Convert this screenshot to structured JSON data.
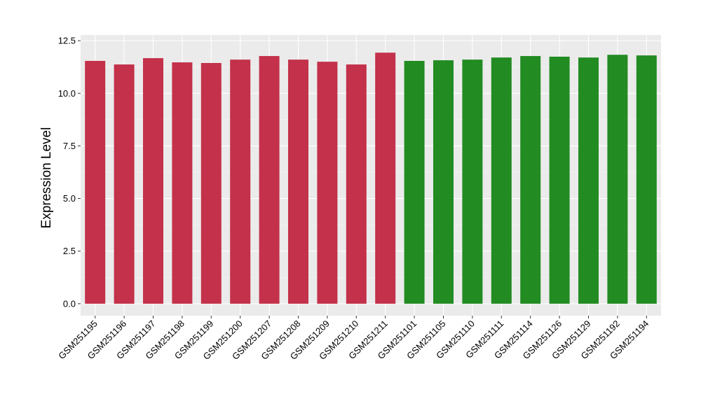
{
  "chart_data": {
    "type": "bar",
    "title": "",
    "xlabel": "",
    "ylabel": "Expression Level",
    "ylim": [
      -0.57,
      12.77
    ],
    "yticks": [
      "0.0",
      "2.5",
      "5.0",
      "7.5",
      "10.0",
      "12.5"
    ],
    "ytick_values": [
      0,
      2.5,
      5,
      7.5,
      10,
      12.5
    ],
    "grid": true,
    "categories": [
      "GSM251195",
      "GSM251196",
      "GSM251197",
      "GSM251198",
      "GSM251199",
      "GSM251200",
      "GSM251207",
      "GSM251208",
      "GSM251209",
      "GSM251210",
      "GSM251211",
      "GSM251101",
      "GSM251105",
      "GSM251110",
      "GSM251111",
      "GSM251114",
      "GSM251126",
      "GSM251129",
      "GSM251192",
      "GSM251194"
    ],
    "values": [
      11.54,
      11.37,
      11.67,
      11.47,
      11.44,
      11.6,
      11.77,
      11.6,
      11.5,
      11.37,
      11.93,
      11.54,
      11.57,
      11.6,
      11.7,
      11.77,
      11.74,
      11.7,
      11.83,
      11.8
    ],
    "groups": [
      0,
      0,
      0,
      0,
      0,
      0,
      0,
      0,
      0,
      0,
      0,
      1,
      1,
      1,
      1,
      1,
      1,
      1,
      1,
      1
    ],
    "colors": [
      "#c3314a",
      "#228b22"
    ],
    "panel_color": "#ebebeb"
  }
}
